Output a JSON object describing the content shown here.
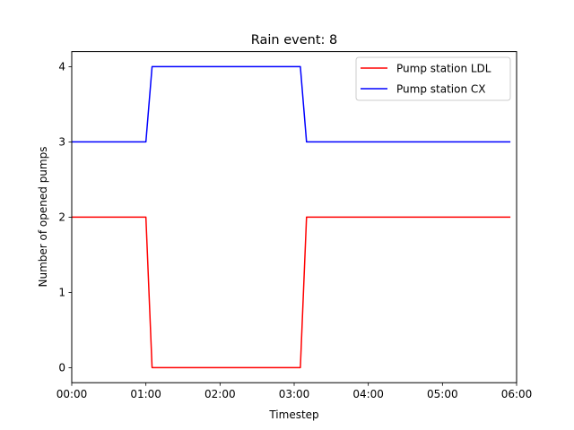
{
  "chart_data": {
    "type": "line",
    "title": "Rain event: 8",
    "xlabel": "Timestep",
    "ylabel": "Number of opened pumps",
    "x_tick_labels": [
      "00:00",
      "01:00",
      "02:00",
      "03:00",
      "04:00",
      "05:00",
      "06:00"
    ],
    "y_tick_labels": [
      "0",
      "1",
      "2",
      "3",
      "4"
    ],
    "xlim": [
      "00:00",
      "06:00"
    ],
    "ylim": [
      -0.2,
      4.2
    ],
    "grid": false,
    "legend_position": "top-right",
    "series": [
      {
        "name": "Pump station LDL",
        "color": "#ff0000",
        "x": [
          "00:00",
          "01:00",
          "01:05",
          "03:05",
          "03:10",
          "05:55"
        ],
        "y": [
          2,
          2,
          0,
          0,
          2,
          2
        ]
      },
      {
        "name": "Pump station CX",
        "color": "#0000ff",
        "x": [
          "00:00",
          "01:00",
          "01:05",
          "03:05",
          "03:10",
          "05:55"
        ],
        "y": [
          3,
          3,
          4,
          4,
          3,
          3
        ]
      }
    ]
  }
}
